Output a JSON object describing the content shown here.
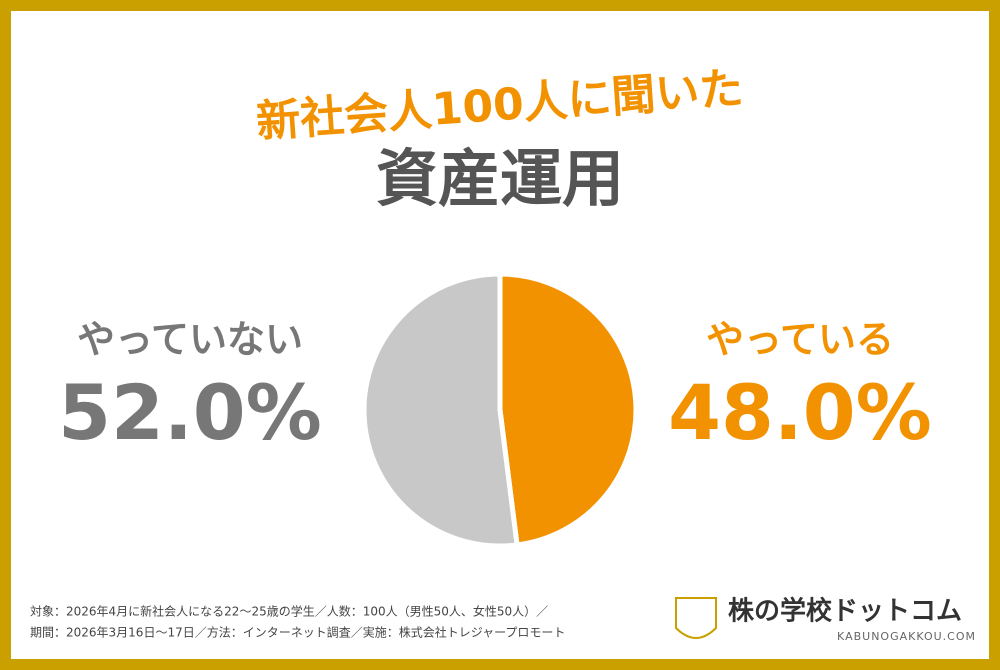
{
  "chart_data": {
    "type": "pie",
    "title": "新社会人100人に聞いた",
    "subtitle": "資産運用",
    "categories": [
      "やっている",
      "やっていない"
    ],
    "values": [
      48.0,
      52.0
    ],
    "value_labels": [
      "48.0%",
      "52.0%"
    ],
    "colors": [
      "#f39200",
      "#c8c8c8"
    ]
  },
  "source": {
    "lines": [
      "対象：2026年4月に新社会人になる22〜25歳の学生／人数：100人（男性50人、女性50人）／",
      "期間：2026年3月16日〜17日／方法：インターネット調査／実施：株式会社トレジャープロモート"
    ]
  },
  "logo": {
    "name": "株の学校ドットコム",
    "url": "KABUNOGAKKOU.COM"
  }
}
